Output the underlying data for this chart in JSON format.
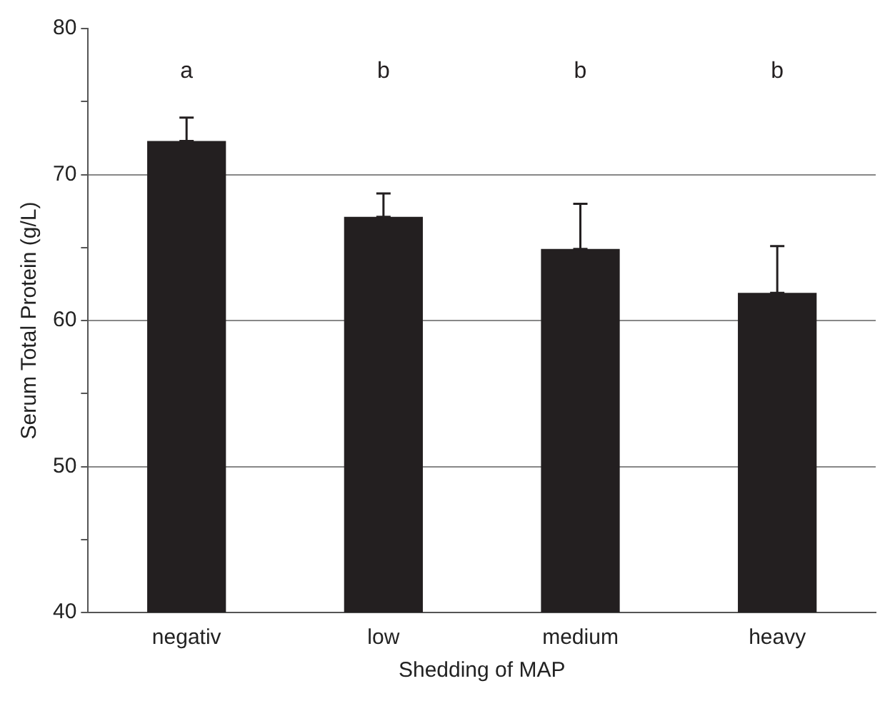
{
  "chart_data": {
    "type": "bar",
    "xlabel": "Shedding of MAP",
    "ylabel": "Serum Total Protein (g/L)",
    "categories": [
      "negativ",
      "low",
      "medium",
      "heavy"
    ],
    "values": [
      72.3,
      67.1,
      64.9,
      61.9
    ],
    "color": "#231f20",
    "errors": [
      [
        72.3,
        73.9
      ],
      [
        67.1,
        68.7
      ],
      [
        64.9,
        68.0
      ],
      [
        61.9,
        65.1
      ]
    ],
    "ylim": [
      40,
      80
    ],
    "yticks": [
      40,
      {
        "value": 45,
        "label": null
      },
      50,
      {
        "value": 55,
        "label": null
      },
      60,
      {
        "value": 65,
        "label": null
      },
      70,
      {
        "value": 75,
        "label": null
      },
      80
    ],
    "grid": "y",
    "legend": false,
    "annotations": [
      "a",
      "b",
      "b",
      "b"
    ]
  }
}
